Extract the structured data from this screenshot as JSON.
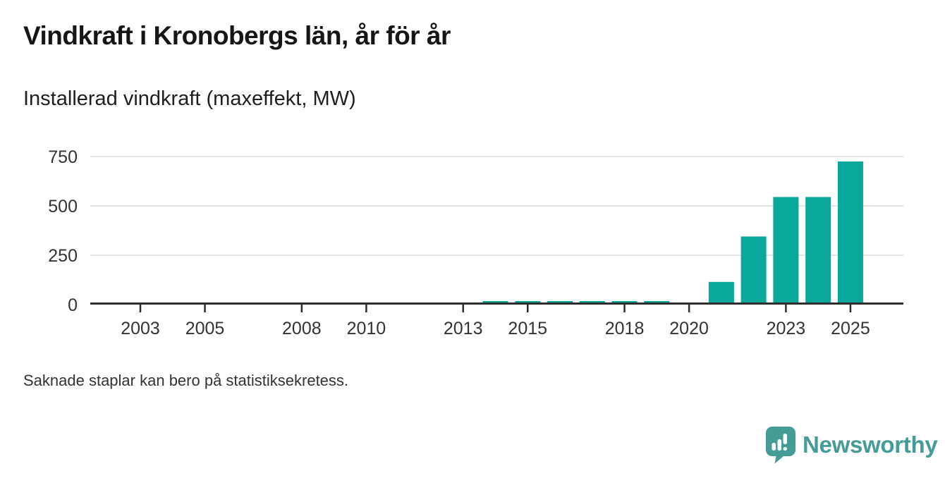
{
  "header": {
    "title": "Vindkraft i Kronobergs län, år för år",
    "subtitle": "Installerad vindkraft (maxeffekt, MW)"
  },
  "footer": {
    "note": "Saknade staplar kan bero på statistiksekretess."
  },
  "branding": {
    "name": "Newsworthy",
    "icon": "newsworthy-speech-bubble-bar-chart-icon",
    "color": "#459c96"
  },
  "colors": {
    "bar": "#0aa79b",
    "grid": "#dcdcdc",
    "axis": "#2d2d2d",
    "tick_text": "#333333"
  },
  "chart_data": {
    "type": "bar",
    "title": "Vindkraft i Kronobergs län, år för år",
    "subtitle": "Installerad vindkraft (maxeffekt, MW)",
    "unit": "MW",
    "x": [
      2014,
      2015,
      2016,
      2017,
      2018,
      2019,
      2021,
      2022,
      2023,
      2024,
      2025
    ],
    "values": [
      10,
      10,
      10,
      10,
      10,
      10,
      115,
      345,
      545,
      545,
      725
    ],
    "missing_bars_note": "Saknade staplar kan bero på statistiksekretess.",
    "xlabel": "",
    "ylabel": "",
    "x_ticks": [
      2003,
      2005,
      2008,
      2010,
      2013,
      2015,
      2018,
      2020,
      2023,
      2025
    ],
    "y_ticks": [
      0,
      250,
      500,
      750
    ],
    "xlim": [
      2001.4,
      2026.8
    ],
    "ylim": [
      0,
      810
    ],
    "grid": "horizontal",
    "legend": "none",
    "bar_color": "#0aa79b"
  }
}
